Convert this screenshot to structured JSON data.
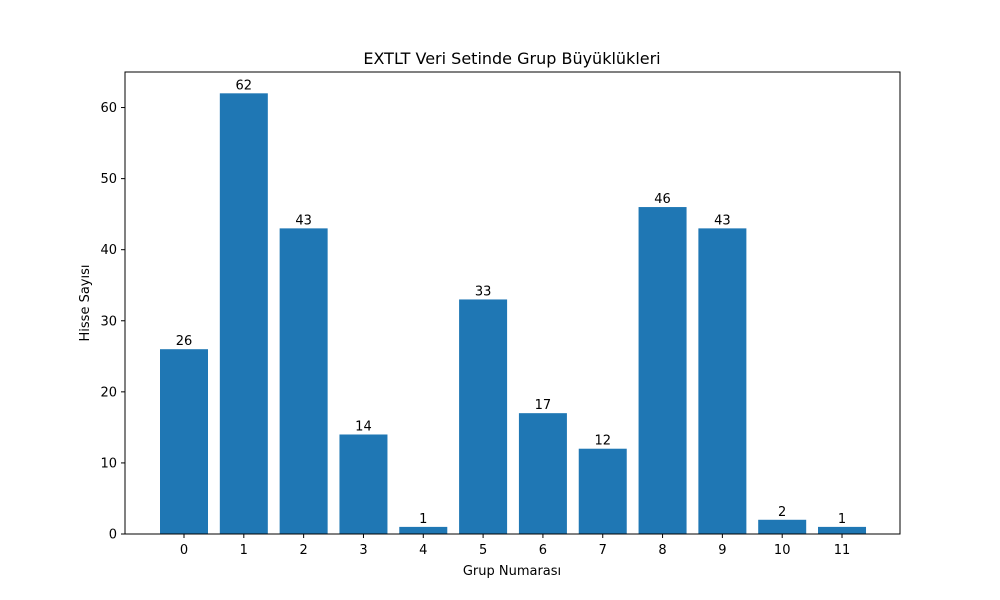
{
  "chart_data": {
    "type": "bar",
    "title": "EXTLT Veri Setinde Grup Büyüklükleri",
    "xlabel": "Grup Numarası",
    "ylabel": "Hisse Sayısı",
    "categories": [
      "0",
      "1",
      "2",
      "3",
      "4",
      "5",
      "6",
      "7",
      "8",
      "9",
      "10",
      "11"
    ],
    "values": [
      26,
      62,
      43,
      14,
      1,
      33,
      17,
      12,
      46,
      43,
      2,
      1
    ],
    "ylim": [
      0,
      65
    ],
    "yticks": [
      0,
      10,
      20,
      30,
      40,
      50,
      60
    ],
    "grid": false,
    "legend": "none",
    "bar_color": "#1f77b4"
  }
}
